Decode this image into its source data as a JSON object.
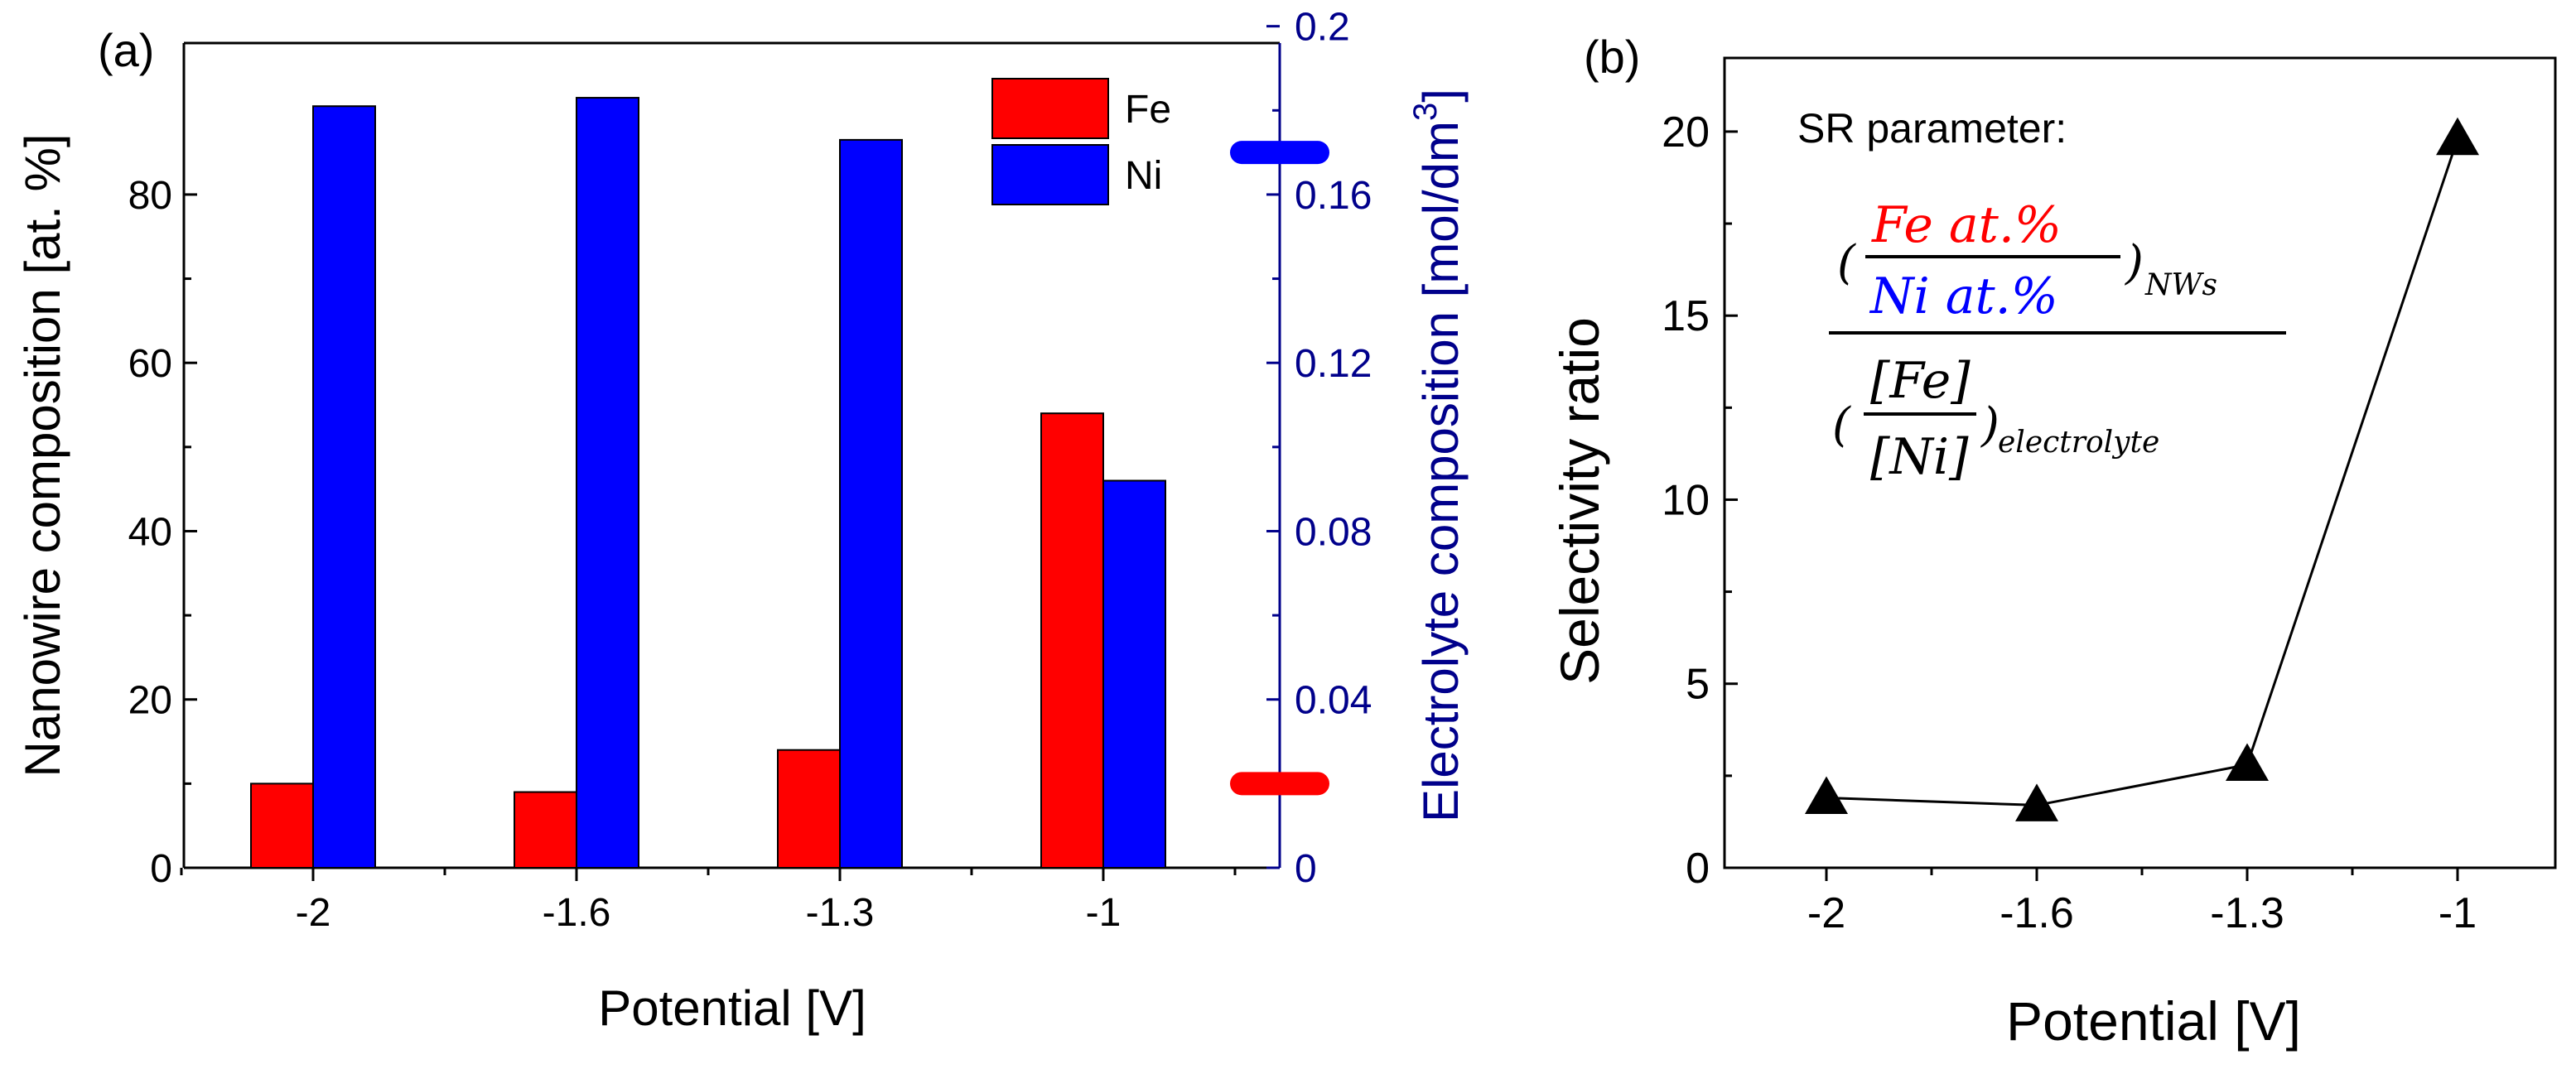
{
  "chart_data": [
    {
      "panel_label": "(a)",
      "type": "bar",
      "categories": [
        "-2",
        "-1.6",
        "-1.3",
        "-1"
      ],
      "series": [
        {
          "name": "Fe",
          "color": "#ff0000",
          "values": [
            10,
            9,
            14,
            54
          ]
        },
        {
          "name": "Ni",
          "color": "#0000ff",
          "values": [
            90.5,
            91.5,
            86.5,
            46
          ]
        }
      ],
      "xlabel": "Potential [V]",
      "ylabel": "Nanowire composition [at. %]",
      "ylim": [
        0,
        98
      ],
      "yticks": [
        0,
        20,
        40,
        60,
        80
      ],
      "y2label_main": "Electrolyte composition [mol/dm",
      "y2label_sup": "3",
      "y2label_end": "]",
      "y2lim": [
        0,
        0.196
      ],
      "y2ticks": [
        "0",
        "0.04",
        "0.08",
        "0.12",
        "0.16",
        "0.2"
      ],
      "y2tick_values": [
        0,
        0.04,
        0.08,
        0.12,
        0.16,
        0.2
      ],
      "y2axis_color": "#00008b",
      "electrolyte_markers": [
        {
          "species": "Ni",
          "color": "#0000ff",
          "value": 0.17
        },
        {
          "species": "Fe",
          "color": "#ff0000",
          "value": 0.02
        }
      ],
      "legend_position": "top-right"
    },
    {
      "panel_label": "(b)",
      "type": "line",
      "x_categories": [
        "-2",
        "-1.6",
        "-1.3",
        "-1"
      ],
      "y": [
        1.9,
        1.7,
        2.8,
        19.8
      ],
      "marker": "triangle",
      "color": "#000000",
      "xlabel": "Potential [V]",
      "ylabel": "Selectivity ratio",
      "ylim": [
        0,
        22
      ],
      "yticks": [
        0,
        5,
        10,
        15,
        20
      ],
      "annotation": {
        "title": "SR parameter:",
        "num_top": "Fe at.%",
        "num_bottom": "Ni at.%",
        "num_sub": "NWs",
        "den_top": "[Fe]",
        "den_bottom": "[Ni]",
        "den_sub": "electrolyte"
      }
    }
  ]
}
